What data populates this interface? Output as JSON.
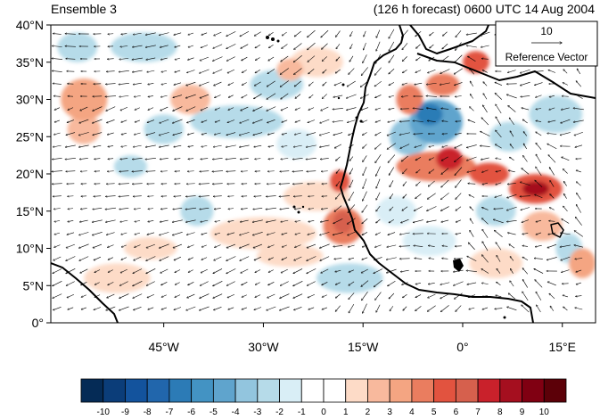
{
  "header": {
    "ensemble_label": "Ensemble 3",
    "forecast_label": "(126 h forecast) 0600 UTC 14 Aug 2004"
  },
  "reference_vector": {
    "value": "10",
    "label": "Reference Vector"
  },
  "map": {
    "lon_range": [
      -62,
      20
    ],
    "lat_range": [
      0,
      40
    ],
    "lat_ticks": [
      {
        "value": 0,
        "label": "0°"
      },
      {
        "value": 5,
        "label": "5°N"
      },
      {
        "value": 10,
        "label": "10°N"
      },
      {
        "value": 15,
        "label": "15°N"
      },
      {
        "value": 20,
        "label": "20°N"
      },
      {
        "value": 25,
        "label": "25°N"
      },
      {
        "value": 30,
        "label": "30°N"
      },
      {
        "value": 35,
        "label": "35°N"
      },
      {
        "value": 40,
        "label": "40°N"
      }
    ],
    "lon_ticks": [
      {
        "value": -45,
        "label": "45°W"
      },
      {
        "value": -30,
        "label": "30°W"
      },
      {
        "value": -15,
        "label": "15°W"
      },
      {
        "value": 0,
        "label": "0°"
      },
      {
        "value": 15,
        "label": "15°E"
      }
    ],
    "anomaly_blobs": [
      {
        "lon": -57,
        "lat": 30,
        "rlon": 3.5,
        "rlat": 2.8,
        "level": 3
      },
      {
        "lon": -57,
        "lat": 26,
        "rlon": 2.5,
        "rlat": 2,
        "level": 2
      },
      {
        "lon": -58,
        "lat": 37,
        "rlon": 3,
        "rlat": 2,
        "level": -2
      },
      {
        "lon": -48,
        "lat": 37,
        "rlon": 5,
        "rlat": 2,
        "level": -2
      },
      {
        "lon": -45,
        "lat": 26,
        "rlon": 3,
        "rlat": 2,
        "level": -2
      },
      {
        "lon": -50,
        "lat": 21,
        "rlon": 2.5,
        "rlat": 1.5,
        "level": -2
      },
      {
        "lon": -52,
        "lat": 6,
        "rlon": 5,
        "rlat": 2,
        "level": 1
      },
      {
        "lon": -47,
        "lat": 10,
        "rlon": 4,
        "rlat": 1.5,
        "level": 1
      },
      {
        "lon": -40,
        "lat": 15,
        "rlon": 2.5,
        "rlat": 2,
        "level": -2
      },
      {
        "lon": -41,
        "lat": 30,
        "rlon": 3,
        "rlat": 2,
        "level": 2
      },
      {
        "lon": -34,
        "lat": 27,
        "rlon": 7,
        "rlat": 2.2,
        "level": -2
      },
      {
        "lon": -28,
        "lat": 32,
        "rlon": 4,
        "rlat": 2,
        "level": -2
      },
      {
        "lon": -26,
        "lat": 34,
        "rlon": 2,
        "rlat": 1.5,
        "level": 2
      },
      {
        "lon": -22,
        "lat": 35,
        "rlon": 4,
        "rlat": 2,
        "level": 1
      },
      {
        "lon": -30,
        "lat": 12,
        "rlon": 8,
        "rlat": 2.2,
        "level": 1
      },
      {
        "lon": -26,
        "lat": 9,
        "rlon": 5,
        "rlat": 1.5,
        "level": 1
      },
      {
        "lon": -22,
        "lat": 17,
        "rlon": 5,
        "rlat": 2,
        "level": 1
      },
      {
        "lon": -18,
        "lat": 13,
        "rlon": 3,
        "rlat": 2.5,
        "level": 4
      },
      {
        "lon": -18,
        "lat": 13.5,
        "rlon": 1.5,
        "rlat": 1.5,
        "level": 6
      },
      {
        "lon": -18.5,
        "lat": 19,
        "rlon": 1.5,
        "rlat": 1.5,
        "level": 5
      },
      {
        "lon": -25,
        "lat": 24,
        "rlon": 3,
        "rlat": 2,
        "level": -1
      },
      {
        "lon": -17,
        "lat": 6,
        "rlon": 5,
        "rlat": 2,
        "level": -2
      },
      {
        "lon": -10,
        "lat": 15,
        "rlon": 3,
        "rlat": 2,
        "level": -1
      },
      {
        "lon": -8,
        "lat": 25,
        "rlon": 3,
        "rlat": 2.5,
        "level": -3
      },
      {
        "lon": -4,
        "lat": 27,
        "rlon": 4,
        "rlat": 3,
        "level": -4
      },
      {
        "lon": -5,
        "lat": 28,
        "rlon": 2,
        "rlat": 1.5,
        "level": -6
      },
      {
        "lon": -8,
        "lat": 30,
        "rlon": 2,
        "rlat": 2,
        "level": 4
      },
      {
        "lon": -3,
        "lat": 32,
        "rlon": 2.5,
        "rlat": 1.5,
        "level": 4
      },
      {
        "lon": 2,
        "lat": 35,
        "rlon": 2,
        "rlat": 1.5,
        "level": 5
      },
      {
        "lon": -4,
        "lat": 21,
        "rlon": 6,
        "rlat": 2,
        "level": 4
      },
      {
        "lon": -2,
        "lat": 22,
        "rlon": 2,
        "rlat": 1.5,
        "level": 7
      },
      {
        "lon": 4,
        "lat": 20,
        "rlon": 3,
        "rlat": 1.5,
        "level": 5
      },
      {
        "lon": 11,
        "lat": 18,
        "rlon": 4,
        "rlat": 2,
        "level": 5
      },
      {
        "lon": 11,
        "lat": 18,
        "rlon": 2,
        "rlat": 1,
        "level": 8
      },
      {
        "lon": 7,
        "lat": 25,
        "rlon": 3,
        "rlat": 2,
        "level": -2
      },
      {
        "lon": 14,
        "lat": 28,
        "rlon": 4,
        "rlat": 2.5,
        "level": -2
      },
      {
        "lon": 5,
        "lat": 15,
        "rlon": 3,
        "rlat": 2,
        "level": -2
      },
      {
        "lon": 12,
        "lat": 13,
        "rlon": 3,
        "rlat": 2,
        "level": 2
      },
      {
        "lon": 16,
        "lat": 10,
        "rlon": 2,
        "rlat": 2,
        "level": -2
      },
      {
        "lon": -5,
        "lat": 11,
        "rlon": 4,
        "rlat": 2,
        "level": -1
      },
      {
        "lon": 5,
        "lat": 8,
        "rlon": 4,
        "rlat": 2,
        "level": 1
      },
      {
        "lon": 18,
        "lat": 8,
        "rlon": 2,
        "rlat": 2,
        "level": 3
      }
    ]
  },
  "colorbar": {
    "labels": [
      "-10",
      "-9",
      "-8",
      "-7",
      "-6",
      "-5",
      "-4",
      "-3",
      "-2",
      "-1",
      "0",
      "1",
      "2",
      "3",
      "4",
      "5",
      "6",
      "7",
      "8",
      "9",
      "10"
    ],
    "colors": [
      "#052b56",
      "#0b3d79",
      "#13539d",
      "#2166ac",
      "#2c7bb6",
      "#4393c3",
      "#5fa4cd",
      "#92c5de",
      "#b6dbe9",
      "#d9eef6",
      "#ffffff",
      "#ffffff",
      "#fddbc7",
      "#f8b99d",
      "#f4a582",
      "#ea7d5f",
      "#e2533f",
      "#d6604d",
      "#c9212b",
      "#a50f1f",
      "#800012",
      "#5c0008"
    ]
  }
}
